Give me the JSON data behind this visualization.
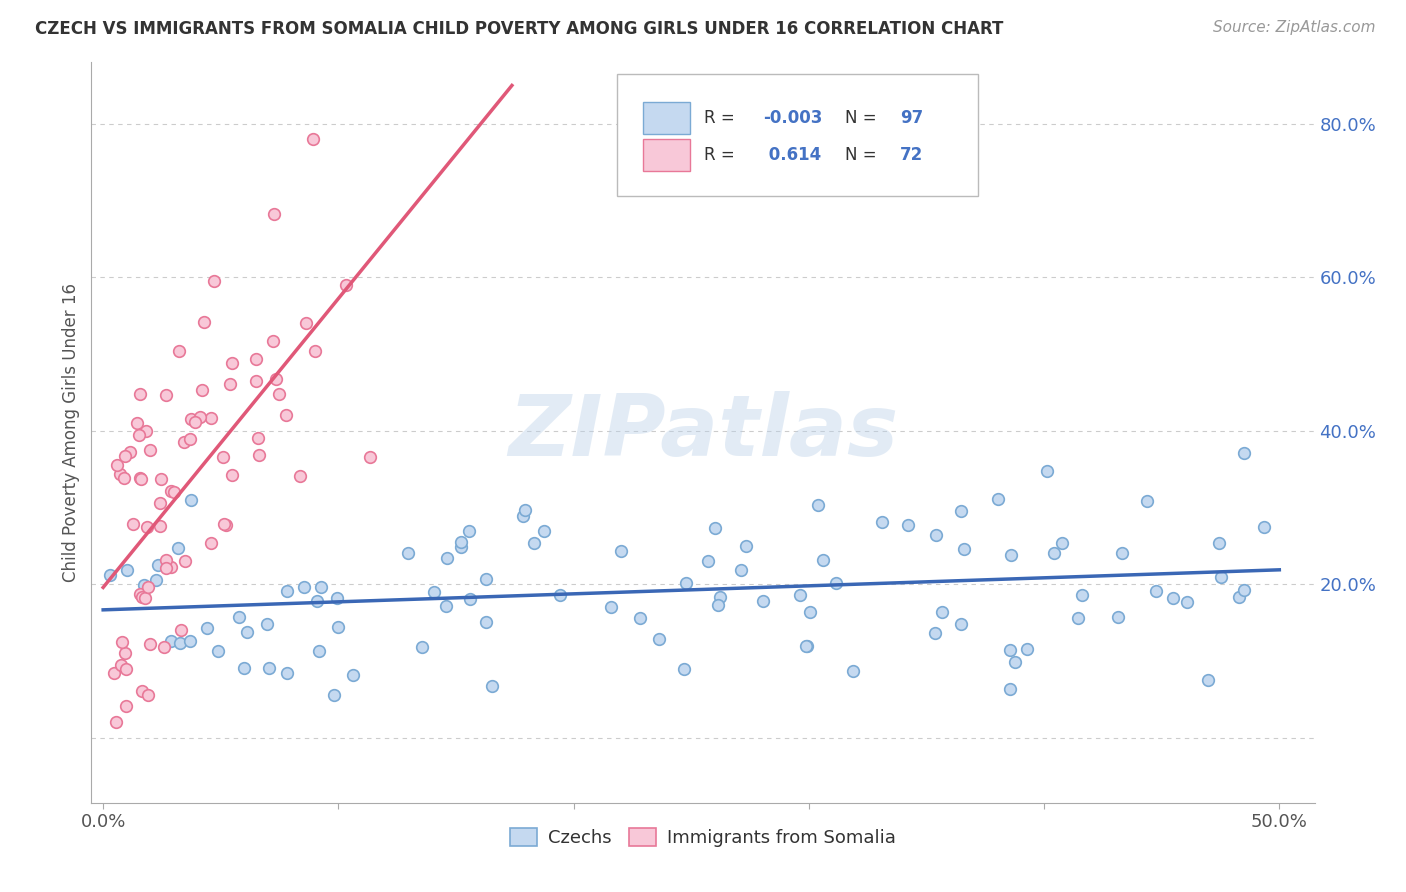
{
  "title": "CZECH VS IMMIGRANTS FROM SOMALIA CHILD POVERTY AMONG GIRLS UNDER 16 CORRELATION CHART",
  "source": "Source: ZipAtlas.com",
  "ylabel": "Child Poverty Among Girls Under 16",
  "xlim": [
    -0.005,
    0.515
  ],
  "ylim": [
    -0.085,
    0.88
  ],
  "xtick_pos": [
    0.0,
    0.1,
    0.2,
    0.3,
    0.4,
    0.5
  ],
  "xtick_labels": [
    "0.0%",
    "",
    "",
    "",
    "",
    "50.0%"
  ],
  "ytick_pos": [
    0.0,
    0.2,
    0.4,
    0.6,
    0.8
  ],
  "ytick_labels": [
    "",
    "20.0%",
    "40.0%",
    "60.0%",
    "80.0%"
  ],
  "czech_facecolor": "#c5d9f0",
  "czech_edgecolor": "#7baad4",
  "czech_trend_color": "#3a67b5",
  "somalia_facecolor": "#f8c8d8",
  "somalia_edgecolor": "#e87898",
  "somalia_trend_color": "#e05878",
  "czech_R": -0.003,
  "czech_N": 97,
  "somalia_R": 0.614,
  "somalia_N": 72,
  "watermark": "ZIPatlas",
  "background_color": "#ffffff",
  "grid_color": "#cccccc",
  "title_color": "#333333",
  "source_color": "#999999",
  "axis_label_color": "#555555",
  "tick_label_color": "#4472c4",
  "legend_box_color": "#e8e8e8",
  "dot_size": 70,
  "dot_linewidth": 1.2
}
